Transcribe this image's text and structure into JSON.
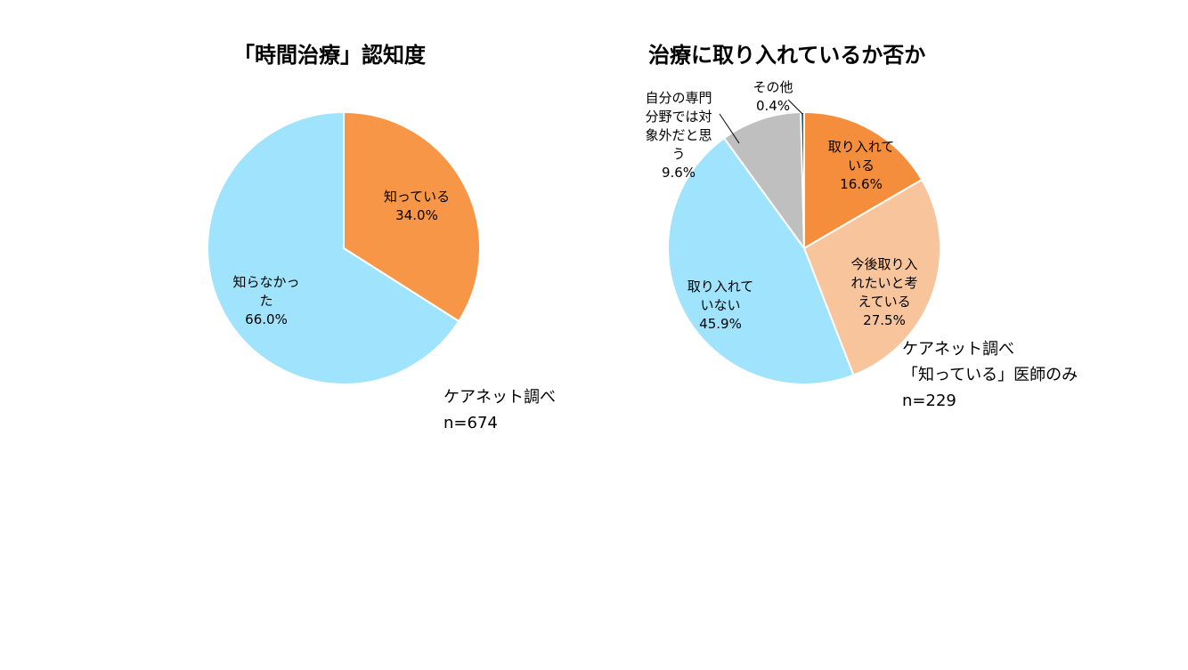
{
  "chart_data": [
    {
      "type": "pie",
      "title": "「時間治療」認知度",
      "slices": [
        {
          "label": "知っている",
          "value": 34.0,
          "display": "34.0%",
          "color": "#f79646"
        },
        {
          "label": "知らなかった",
          "value": 66.0,
          "display": "66.0%",
          "color": "#a0e3fc"
        }
      ],
      "note": {
        "source": "ケアネット調べ",
        "n": "n=674"
      }
    },
    {
      "type": "pie",
      "title": "治療に取り入れているか否か",
      "slices": [
        {
          "label": "取り入れている",
          "value": 16.6,
          "display": "16.6%",
          "color": "#f58e3c"
        },
        {
          "label": "今後取り入れたいと考えている",
          "value": 27.5,
          "display": "27.5%",
          "color": "#f8c49b"
        },
        {
          "label": "取り入れていない",
          "value": 45.9,
          "display": "45.9%",
          "color": "#a0e3fc"
        },
        {
          "label": "自分の専門分野では対象外だと思う",
          "value": 9.6,
          "display": "9.6%",
          "color": "#bfbfbf"
        },
        {
          "label": "その他",
          "value": 0.4,
          "display": "0.4%",
          "color": "#1f4e79"
        }
      ],
      "note": {
        "source": "ケアネット調べ",
        "population": "「知っている」医師のみ",
        "n": "n=229"
      }
    }
  ]
}
